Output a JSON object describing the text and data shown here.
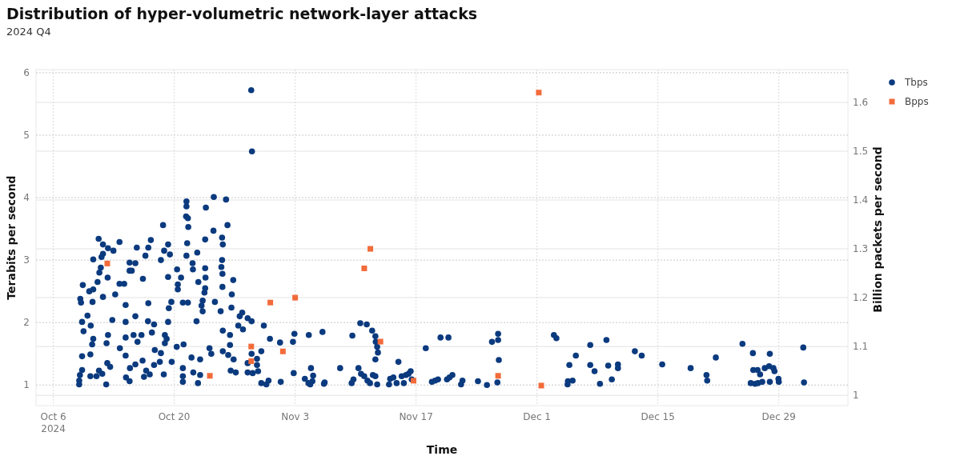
{
  "chart_data": {
    "type": "scatter",
    "title": "Distribution of hyper-volumetric network-layer attacks",
    "subtitle": "2024 Q4",
    "xlabel": "Time",
    "ylabel": "Terabits per second",
    "y2label": "Billion packets per second",
    "xlim": [
      "2024-10-04",
      "2025-01-06"
    ],
    "xticks": [
      {
        "value": "2024-10-06",
        "label": "Oct 6\n2024"
      },
      {
        "value": "2024-10-20",
        "label": "Oct 20"
      },
      {
        "value": "2024-11-03",
        "label": "Nov 3"
      },
      {
        "value": "2024-11-17",
        "label": "Nov 17"
      },
      {
        "value": "2024-12-01",
        "label": "Dec 1"
      },
      {
        "value": "2024-12-15",
        "label": "Dec 15"
      },
      {
        "value": "2024-12-29",
        "label": "Dec 29"
      }
    ],
    "ylim": [
      0.67,
      6.05
    ],
    "yticks": [
      1,
      2,
      3,
      4,
      5,
      6
    ],
    "y2lim": [
      0.979,
      1.667
    ],
    "y2ticks": [
      1,
      1.1,
      1.2,
      1.3,
      1.4,
      1.5,
      1.6
    ],
    "grid": true,
    "legend": "top right",
    "series": [
      {
        "name": "Tbps",
        "color": "#0b3a7e",
        "marker": "circle",
        "axis": "y",
        "x": [
          "2024-10-09",
          "2024-10-09",
          "2024-10-09T02:00",
          "2024-10-09T08:00",
          "2024-10-09T08:00",
          "2024-10-09T12:00",
          "2024-10-09T08:00",
          "2024-10-09T05:00",
          "2024-10-09T03:00",
          "2024-10-09T10:00",
          "2024-10-09T23:00",
          "2024-10-10T04:00",
          "2024-10-10T08:00",
          "2024-10-10T07:00",
          "2024-10-10T07:00",
          "2024-10-10T12:00",
          "2024-10-10T15:00",
          "2024-10-10T13:00",
          "2024-10-10T15:00",
          "2024-10-10T15:00",
          "2024-10-11T03:00",
          "2024-10-11T08:00",
          "2024-10-11T12:00",
          "2024-10-11T14:00",
          "2024-10-11T18:00",
          "2024-10-11T06:00",
          "2024-10-11T18:00",
          "2024-10-11T00:00",
          "2024-10-11T07:00",
          "2024-10-11T16:00",
          "2024-10-11T18:00",
          "2024-10-12T07:00",
          "2024-10-12T08:00",
          "2024-10-12T23:00",
          "2024-10-12T03:00",
          "2024-10-12T06:00",
          "2024-10-12T08:00",
          "2024-10-12T04:00",
          "2024-10-12T14:00",
          "2024-10-12T20:00",
          "2024-10-13T04:00",
          "2024-10-13T16:00",
          "2024-10-13T16:00",
          "2024-10-14T05:00",
          "2024-10-13T17:00",
          "2024-10-14T09:00",
          "2024-10-14T09:00",
          "2024-10-14T09:00",
          "2024-10-14T09:00",
          "2024-10-14T10:00",
          "2024-10-14T20:00",
          "2024-10-14T20:00",
          "2024-10-14T20:00",
          "2024-10-15T02:00",
          "2024-10-14T21:00",
          "2024-10-15T07:00",
          "2024-10-15T12:00",
          "2024-10-15T12:00",
          "2024-10-15T12:00",
          "2024-10-15T16:00",
          "2024-10-15T18:00",
          "2024-10-16T05:00",
          "2024-10-16T09:00",
          "2024-10-16T08:00",
          "2024-10-16T12:00",
          "2024-10-16T18:00",
          "2024-10-16T16:00",
          "2024-10-17T00:00",
          "2024-10-17T00:00",
          "2024-10-16T23:00",
          "2024-10-17T04:00",
          "2024-10-17T07:00",
          "2024-10-17T10:00",
          "2024-10-17T16:00",
          "2024-10-17T18:00",
          "2024-10-17T16:00",
          "2024-10-18T08:00",
          "2024-10-18T11:00",
          "2024-10-18T11:00",
          "2024-10-18T17:00",
          "2024-10-18T20:00",
          "2024-10-18T19:00",
          "2024-10-18T22:00",
          "2024-10-18T22:00",
          "2024-10-19T03:00",
          "2024-10-19T07:00",
          "2024-10-19T07:00",
          "2024-10-19T07:00",
          "2024-10-19T09:00",
          "2024-10-19T12:00",
          "2024-10-19T16:00",
          "2024-10-19T17:00",
          "2024-10-20T08:00",
          "2024-10-20T10:00",
          "2024-10-20T10:00",
          "2024-10-20T07:00",
          "2024-10-20T19:00",
          "2024-10-21T00:00",
          "2024-10-21T00:00",
          "2024-10-21T00:00",
          "2024-10-21T00:00",
          "2024-10-21T02:00",
          "2024-10-21T10:00",
          "2024-10-21T10:00",
          "2024-10-21T09:00",
          "2024-10-21T14:00",
          "2024-10-21T15:00",
          "2024-10-21T12:00",
          "2024-10-21T10:00",
          "2024-10-21T14:00",
          "2024-10-22T00:00",
          "2024-10-22T03:00",
          "2024-10-22T04:00",
          "2024-10-22T05:00",
          "2024-10-22T14:00",
          "2024-10-22T16:00",
          "2024-10-22T19:00",
          "2024-10-22T18:00",
          "2024-10-23T00:00",
          "2024-10-23T00:00",
          "2024-10-23T04:00",
          "2024-10-23T07:00",
          "2024-10-23T07:00",
          "2024-10-23T14:00",
          "2024-10-23T16:00",
          "2024-10-23T14:00",
          "2024-10-23T15:00",
          "2024-10-23T14:00",
          "2024-10-23T12:00",
          "2024-10-24T02:00",
          "2024-10-24T07:00",
          "2024-10-24T14:00",
          "2024-10-24T13:00",
          "2024-10-24T17:00",
          "2024-10-25T09:00",
          "2024-10-25T11:00",
          "2024-10-25T13:00",
          "2024-10-25T15:00",
          "2024-10-25T13:00",
          "2024-10-25T14:00",
          "2024-10-25T14:00",
          "2024-10-25T15:00",
          "2024-10-25T15:00",
          "2024-10-26T00:00",
          "2024-10-26T04:00",
          "2024-10-26T06:00",
          "2024-10-26T11:00",
          "2024-10-26T11:00",
          "2024-10-26T13:00",
          "2024-10-26T15:00",
          "2024-10-26T16:00",
          "2024-10-26T20:00",
          "2024-10-26T21:00",
          "2024-10-27T03:00",
          "2024-10-27T10:00",
          "2024-10-27T14:00",
          "2024-10-27T21:00",
          "2024-10-27T23:00",
          "2024-10-28T12:00",
          "2024-10-28T12:00",
          "2024-10-28T12:00",
          "2024-10-28T22:00",
          "2024-10-29T00:00",
          "2024-10-28T23:00",
          "2024-10-28T23:00",
          "2024-10-29T02:00",
          "2024-10-29T14:00",
          "2024-10-29T14:00",
          "2024-10-29T17:00",
          "2024-10-30T02:00",
          "2024-10-30T02:00",
          "2024-10-30T09:00",
          "2024-10-30T16:00",
          "2024-10-30T22:00",
          "2024-10-31T02:00",
          "2024-11-01T06:00",
          "2024-11-01T08:00",
          "2024-11-02T18:00",
          "2024-11-02T20:00",
          "2024-11-02T22:00",
          "2024-11-04T14:00",
          "2024-11-04T03:00",
          "2024-11-04T13:00",
          "2024-11-04T18:00",
          "2024-11-04T20:00",
          "2024-11-05T02:00",
          "2024-11-05T00:00",
          "2024-11-06T04:00",
          "2024-11-06T08:00",
          "2024-11-06T10:00",
          "2024-11-08T05:00",
          "2024-11-09T15:00",
          "2024-11-09T13:00",
          "2024-11-09T18:00",
          "2024-11-10T08:00",
          "2024-11-10T13:00",
          "2024-11-10T15:00",
          "2024-11-11T00:00",
          "2024-11-11T07:00",
          "2024-11-11T09:00",
          "2024-11-11T16:00",
          "2024-11-11T22:00",
          "2024-11-12T00:00",
          "2024-11-12T07:00",
          "2024-11-12T08:00",
          "2024-11-12T12:00",
          "2024-11-12T14:00",
          "2024-11-12T07:00",
          "2024-11-12T07:00",
          "2024-11-12T12:00",
          "2024-11-13T21:00",
          "2024-11-14T00:00",
          "2024-11-14T09:00",
          "2024-11-14T18:00",
          "2024-11-14T23:00",
          "2024-11-15T08:00",
          "2024-11-15T14:00",
          "2024-11-15T20:00",
          "2024-11-16T03:00",
          "2024-11-16T09:00",
          "2024-11-16T12:00",
          "2024-11-18T03:00",
          "2024-11-18T20:00",
          "2024-11-19T05:00",
          "2024-11-19T13:00",
          "2024-11-19T20:00",
          "2024-11-20T14:00",
          "2024-11-20T18:00",
          "2024-11-21T05:00",
          "2024-11-22T05:00",
          "2024-11-20T21:00",
          "2024-11-22T09:00",
          "2024-11-24T04:00",
          "2024-11-25T05:00",
          "2024-11-25T19:00",
          "2024-11-26T12:00",
          "2024-11-26T12:00",
          "2024-11-26T14:00",
          "2024-11-26T10:00",
          "2024-12-02T23:00",
          "2024-12-03T06:00",
          "2024-12-04T13:00",
          "2024-12-04T14:00",
          "2024-12-05T03:00",
          "2024-12-04T18:00",
          "2024-12-05T12:00",
          "2024-12-07T04:00",
          "2024-12-07T04:00",
          "2024-12-07T16:00",
          "2024-12-08T07:00",
          "2024-12-09T01:00",
          "2024-12-09T06:00",
          "2024-12-09T16:00",
          "2024-12-10T09:00",
          "2024-12-10T09:00",
          "2024-12-12T08:00",
          "2024-12-13T03:00",
          "2024-12-15T12:00",
          "2024-12-18T19:00",
          "2024-12-20T15:00",
          "2024-12-20T17:00",
          "2024-12-21T17:00",
          "2024-12-24T19:00",
          "2024-12-25T18:00",
          "2024-12-26T00:00",
          "2024-12-26T01:00",
          "2024-12-26T06:00",
          "2024-12-26T13:00",
          "2024-12-26T14:00",
          "2024-12-26T20:00",
          "2024-12-27T02:00",
          "2024-12-27T09:00",
          "2024-12-27T21:00",
          "2024-12-27T23:00",
          "2024-12-27T23:00",
          "2024-12-28T09:00",
          "2024-12-28T12:00",
          "2024-12-28T23:00",
          "2024-12-29T00:00",
          "2024-12-31T20:00",
          "2024-12-31T22:00"
        ],
        "values": [
          1.01,
          1.07,
          1.16,
          1.24,
          1.46,
          1.86,
          2.01,
          2.32,
          2.38,
          2.6,
          2.11,
          2.5,
          1.95,
          1.49,
          1.14,
          1.65,
          1.74,
          2.33,
          2.53,
          3.01,
          2.65,
          2.8,
          2.88,
          3.05,
          3.1,
          3.34,
          3.25,
          1.14,
          1.23,
          1.18,
          2.41,
          2.72,
          3.19,
          3.15,
          1.01,
          1.35,
          1.8,
          1.67,
          1.29,
          2.04,
          2.45,
          2.62,
          3.29,
          2.62,
          1.59,
          2.28,
          2.01,
          1.76,
          1.47,
          1.12,
          1.06,
          2.96,
          2.83,
          2.83,
          1.27,
          1.8,
          2.95,
          2.1,
          1.33,
          3.2,
          1.69,
          1.8,
          2.7,
          1.39,
          1.13,
          1.23,
          3.07,
          3.2,
          2.31,
          2.02,
          1.17,
          3.32,
          1.84,
          1.97,
          1.56,
          1.32,
          1.37,
          1.51,
          3.0,
          3.56,
          3.15,
          1.17,
          1.8,
          1.67,
          1.74,
          3.25,
          2.73,
          2.01,
          2.23,
          3.09,
          2.33,
          1.37,
          2.85,
          2.61,
          2.53,
          1.61,
          2.72,
          2.32,
          1.27,
          1.14,
          1.05,
          1.65,
          3.94,
          3.86,
          3.7,
          3.67,
          3.53,
          3.27,
          3.07,
          2.32,
          1.44,
          2.95,
          2.85,
          1.2,
          2.02,
          3.12,
          2.65,
          1.03,
          1.41,
          1.16,
          2.27,
          2.35,
          2.18,
          3.33,
          3.84,
          2.87,
          2.72,
          2.55,
          2.48,
          1.59,
          1.5,
          4.01,
          3.47,
          2.33,
          2.18,
          2.89,
          3.36,
          3.25,
          3.0,
          2.78,
          2.57,
          1.87,
          1.54,
          3.97,
          3.56,
          1.48,
          1.8,
          1.64,
          1.23,
          2.24,
          2.45,
          2.68,
          1.41,
          1.2,
          1.95,
          2.1,
          2.16,
          1.89,
          2.07,
          1.35,
          1.2,
          5.72,
          4.74,
          2.02,
          1.5,
          1.19,
          1.42,
          1.32,
          1.22,
          1.54,
          1.03,
          1.95,
          1.01,
          1.07,
          1.74,
          1.68,
          1.05,
          1.69,
          1.19,
          1.82,
          1.8,
          1.1,
          1.03,
          1.01,
          1.27,
          1.15,
          1.06,
          1.85,
          1.02,
          1.04,
          1.27,
          1.79,
          1.03,
          1.09,
          1.27,
          1.99,
          1.18,
          1.14,
          1.97,
          1.07,
          1.03,
          1.87,
          1.16,
          1.78,
          1.69,
          1.61,
          1.52,
          1.41,
          1.14,
          1.01,
          1.01,
          1.1,
          1.12,
          1.03,
          1.37,
          1.14,
          1.03,
          1.16,
          1.18,
          1.22,
          1.09,
          1.59,
          1.05,
          1.07,
          1.09,
          1.76,
          1.09,
          1.76,
          1.16,
          1.01,
          1.12,
          1.07,
          1.06,
          1.0,
          1.69,
          1.82,
          1.72,
          1.4,
          1.04,
          1.8,
          1.75,
          1.01,
          1.06,
          1.07,
          1.32,
          1.47,
          1.64,
          1.32,
          1.22,
          1.02,
          1.72,
          1.31,
          1.09,
          1.33,
          1.27,
          1.54,
          1.47,
          1.33,
          1.27,
          1.16,
          1.07,
          1.44,
          1.66,
          1.03,
          1.51,
          1.24,
          1.02,
          1.24,
          1.03,
          1.17,
          1.05,
          1.27,
          1.3,
          1.5,
          1.05,
          1.27,
          1.22,
          1.1,
          1.05,
          1.6,
          1.04
        ]
      },
      {
        "name": "Bpps",
        "color": "#f26b3a",
        "marker": "square",
        "axis": "y2",
        "x": [
          "2024-10-12T06:00",
          "2024-10-24T03:00",
          "2024-10-28T22:00",
          "2024-10-28T22:00",
          "2024-10-31T03:00",
          "2024-11-01T14:00",
          "2024-11-03T00:00",
          "2024-11-11T00:00",
          "2024-11-11T17:00",
          "2024-11-12T21:00",
          "2024-11-16T17:00",
          "2024-11-26T12:00",
          "2024-12-01T05:00",
          "2024-12-01T12:00"
        ],
        "values": [
          1.27,
          1.04,
          1.1,
          1.07,
          1.19,
          1.09,
          1.2,
          1.26,
          1.3,
          1.11,
          1.03,
          1.04,
          1.62,
          1.02
        ]
      }
    ]
  }
}
